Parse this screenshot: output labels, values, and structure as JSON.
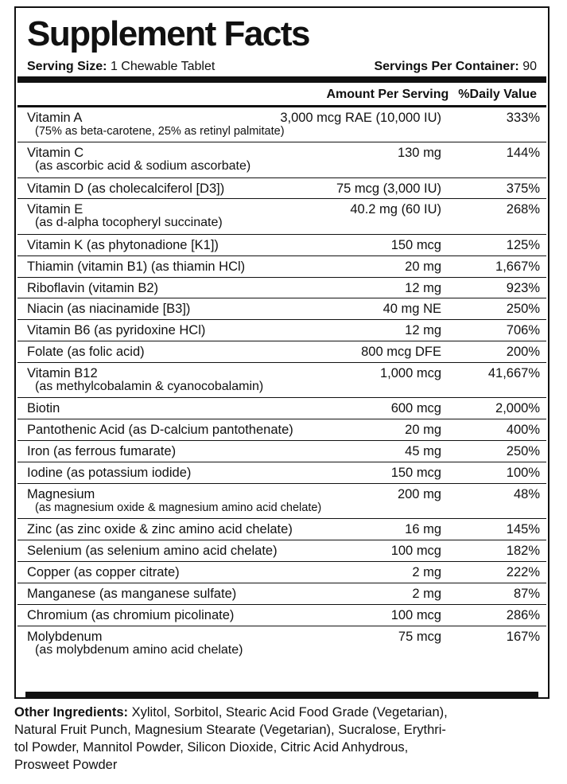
{
  "header": {
    "title": "Supplement Facts",
    "serving_size_label": "Serving Size:",
    "serving_size": "1 Chewable Tablet",
    "servings_label": "Servings Per Container:",
    "servings": "90"
  },
  "table": {
    "columns": [
      "Amount Per Serving",
      "%Daily Value"
    ],
    "rows": [
      {
        "name": "Vitamin A",
        "sub": "(75% as beta-carotene, 25% as retinyl palmitate)",
        "amount": "3,000 mcg RAE (10,000 IU)",
        "dv": "333%"
      },
      {
        "name": "Vitamin C",
        "sub": "(as ascorbic acid & sodium ascorbate)",
        "amount": "130 mg",
        "dv": "144%"
      },
      {
        "name": "Vitamin D (as cholecalciferol [D3])",
        "amount": "75 mcg (3,000 IU)",
        "dv": "375%"
      },
      {
        "name": "Vitamin E",
        "sub": "(as d-alpha tocopheryl succinate)",
        "amount": "40.2 mg (60 IU)",
        "dv": "268%"
      },
      {
        "name": "Vitamin K (as phytonadione [K1])",
        "amount": "150 mcg",
        "dv": "125%"
      },
      {
        "name": "Thiamin (vitamin B1) (as thiamin HCl)",
        "amount": "20 mg",
        "dv": "1,667%"
      },
      {
        "name": "Riboflavin (vitamin B2)",
        "amount": "12 mg",
        "dv": "923%"
      },
      {
        "name": "Niacin (as niacinamide [B3])",
        "amount": "40 mg NE",
        "dv": "250%"
      },
      {
        "name": "Vitamin B6 (as pyridoxine HCl)",
        "amount": "12 mg",
        "dv": "706%"
      },
      {
        "name": "Folate (as folic acid)",
        "amount": "800 mcg DFE",
        "dv": "200%"
      },
      {
        "name": "Vitamin B12",
        "sub": "(as methylcobalamin & cyanocobalamin)",
        "amount": "1,000 mcg",
        "dv": "41,667%"
      },
      {
        "name": "Biotin",
        "amount": "600 mcg",
        "dv": "2,000%"
      },
      {
        "name": "Pantothenic Acid (as D-calcium pantothenate)",
        "amount": "20 mg",
        "dv": "400%"
      },
      {
        "name": "Iron (as ferrous fumarate)",
        "amount": "45 mg",
        "dv": "250%"
      },
      {
        "name": "Iodine (as potassium iodide)",
        "amount": "150 mcg",
        "dv": "100%"
      },
      {
        "name": "Magnesium",
        "sub": "(as magnesium oxide & magnesium amino acid chelate)",
        "amount": "200 mg",
        "dv": "48%"
      },
      {
        "name": "Zinc (as zinc oxide & zinc amino acid chelate)",
        "amount": "16 mg",
        "dv": "145%"
      },
      {
        "name": "Selenium (as selenium amino acid chelate)",
        "amount": "100 mcg",
        "dv": "182%"
      },
      {
        "name": "Copper (as copper citrate)",
        "amount": "2 mg",
        "dv": "222%"
      },
      {
        "name": "Manganese (as manganese sulfate)",
        "amount": "2 mg",
        "dv": "87%"
      },
      {
        "name": "Chromium (as chromium picolinate)",
        "amount": "100 mcg",
        "dv": "286%"
      },
      {
        "name": "Molybdenum",
        "sub": "(as molybdenum amino acid chelate)",
        "amount": "75 mcg",
        "dv": "167%"
      }
    ]
  },
  "other_ingredients": {
    "label": "Other Ingredients:",
    "lines": [
      "Xylitol, Sorbitol, Stearic Acid Food Grade (Vegetarian),",
      "Natural Fruit Punch, Magnesium Stearate (Vegetarian), Sucralose, Erythri-",
      "tol Powder, Mannitol Powder, Silicon Dioxide, Citric Acid Anhydrous,",
      "Prosweet Powder"
    ]
  }
}
